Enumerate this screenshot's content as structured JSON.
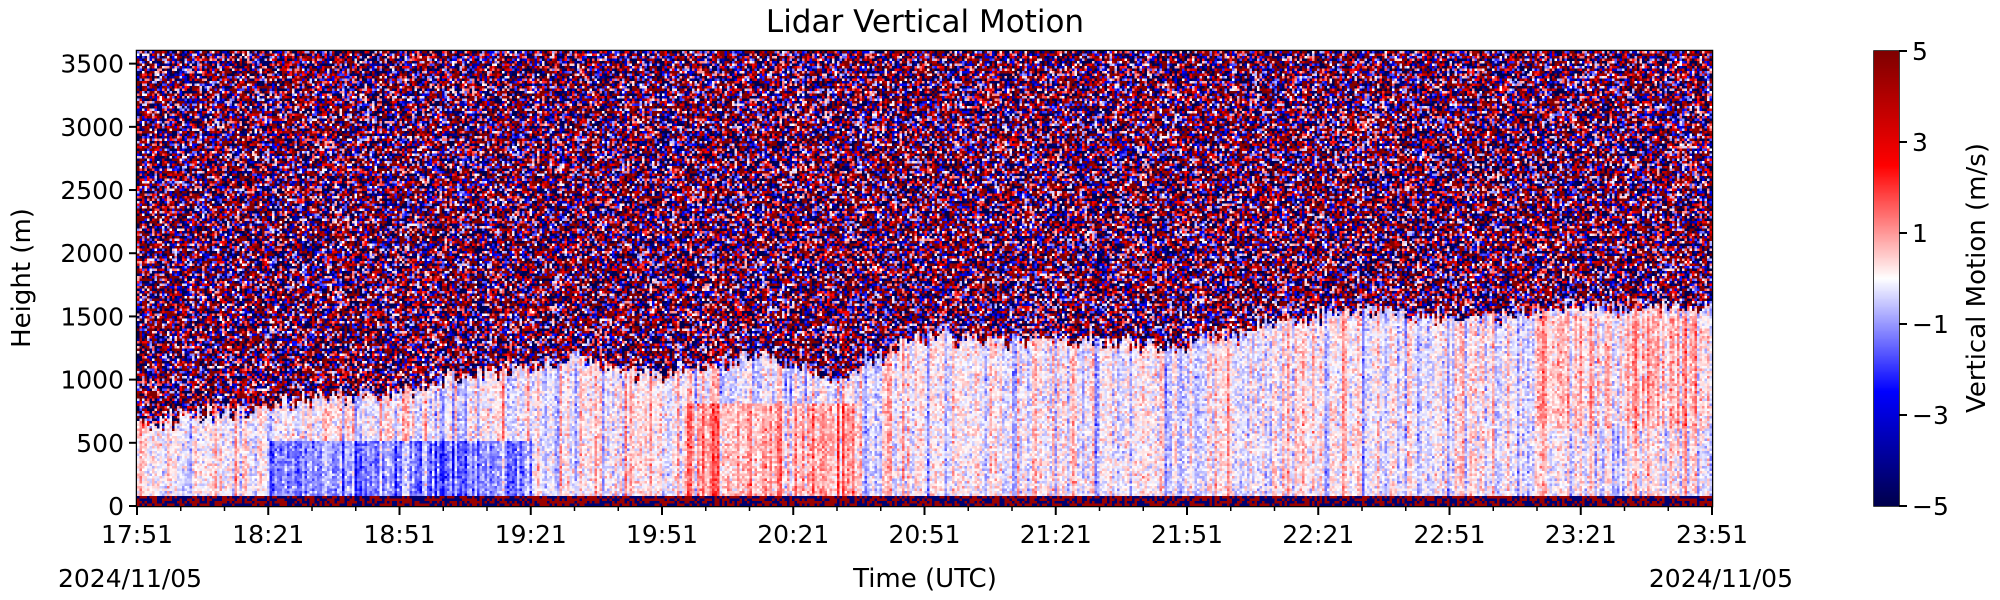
{
  "chart_data": {
    "type": "heatmap",
    "title": "Lidar Vertical Motion",
    "xlabel": "Time (UTC)",
    "ylabel": "Height (m)",
    "x_tick_labels": [
      "17:51",
      "18:21",
      "18:51",
      "19:21",
      "19:51",
      "20:21",
      "20:51",
      "21:21",
      "21:51",
      "22:21",
      "22:51",
      "23:21",
      "23:51"
    ],
    "x_start_date": "2024/11/05",
    "x_end_date": "2024/11/05",
    "x_range": [
      "2024-11-05 17:51",
      "2024-11-05 23:51"
    ],
    "y_ticks": [
      0,
      500,
      1000,
      1500,
      2000,
      2500,
      3000,
      3500
    ],
    "ylim": [
      0,
      3600
    ],
    "colorbar": {
      "label": "Vertical Motion (m/s)",
      "colormap": "seismic",
      "range": [
        -5,
        5
      ],
      "ticks": [
        5,
        3,
        1,
        -1,
        -3,
        -5
      ],
      "tick_labels": [
        "5",
        "3",
        "1",
        "−1",
        "−3",
        "−5"
      ]
    },
    "signal_top_height": [
      [
        "17:51",
        650
      ],
      [
        "18:11",
        700
      ],
      [
        "18:31",
        850
      ],
      [
        "18:51",
        880
      ],
      [
        "19:11",
        1050
      ],
      [
        "19:31",
        1150
      ],
      [
        "19:51",
        1000
      ],
      [
        "20:11",
        1200
      ],
      [
        "20:31",
        1000
      ],
      [
        "20:51",
        1350
      ],
      [
        "21:11",
        1300
      ],
      [
        "21:31",
        1300
      ],
      [
        "21:51",
        1250
      ],
      [
        "22:11",
        1450
      ],
      [
        "22:31",
        1550
      ],
      [
        "22:51",
        1500
      ],
      [
        "23:21",
        1550
      ],
      [
        "23:51",
        1580
      ]
    ],
    "noise_above_signal": true,
    "colors": {
      "positive": "#cc0000",
      "negative": "#0000cc",
      "neutral": "#ffffff"
    }
  }
}
